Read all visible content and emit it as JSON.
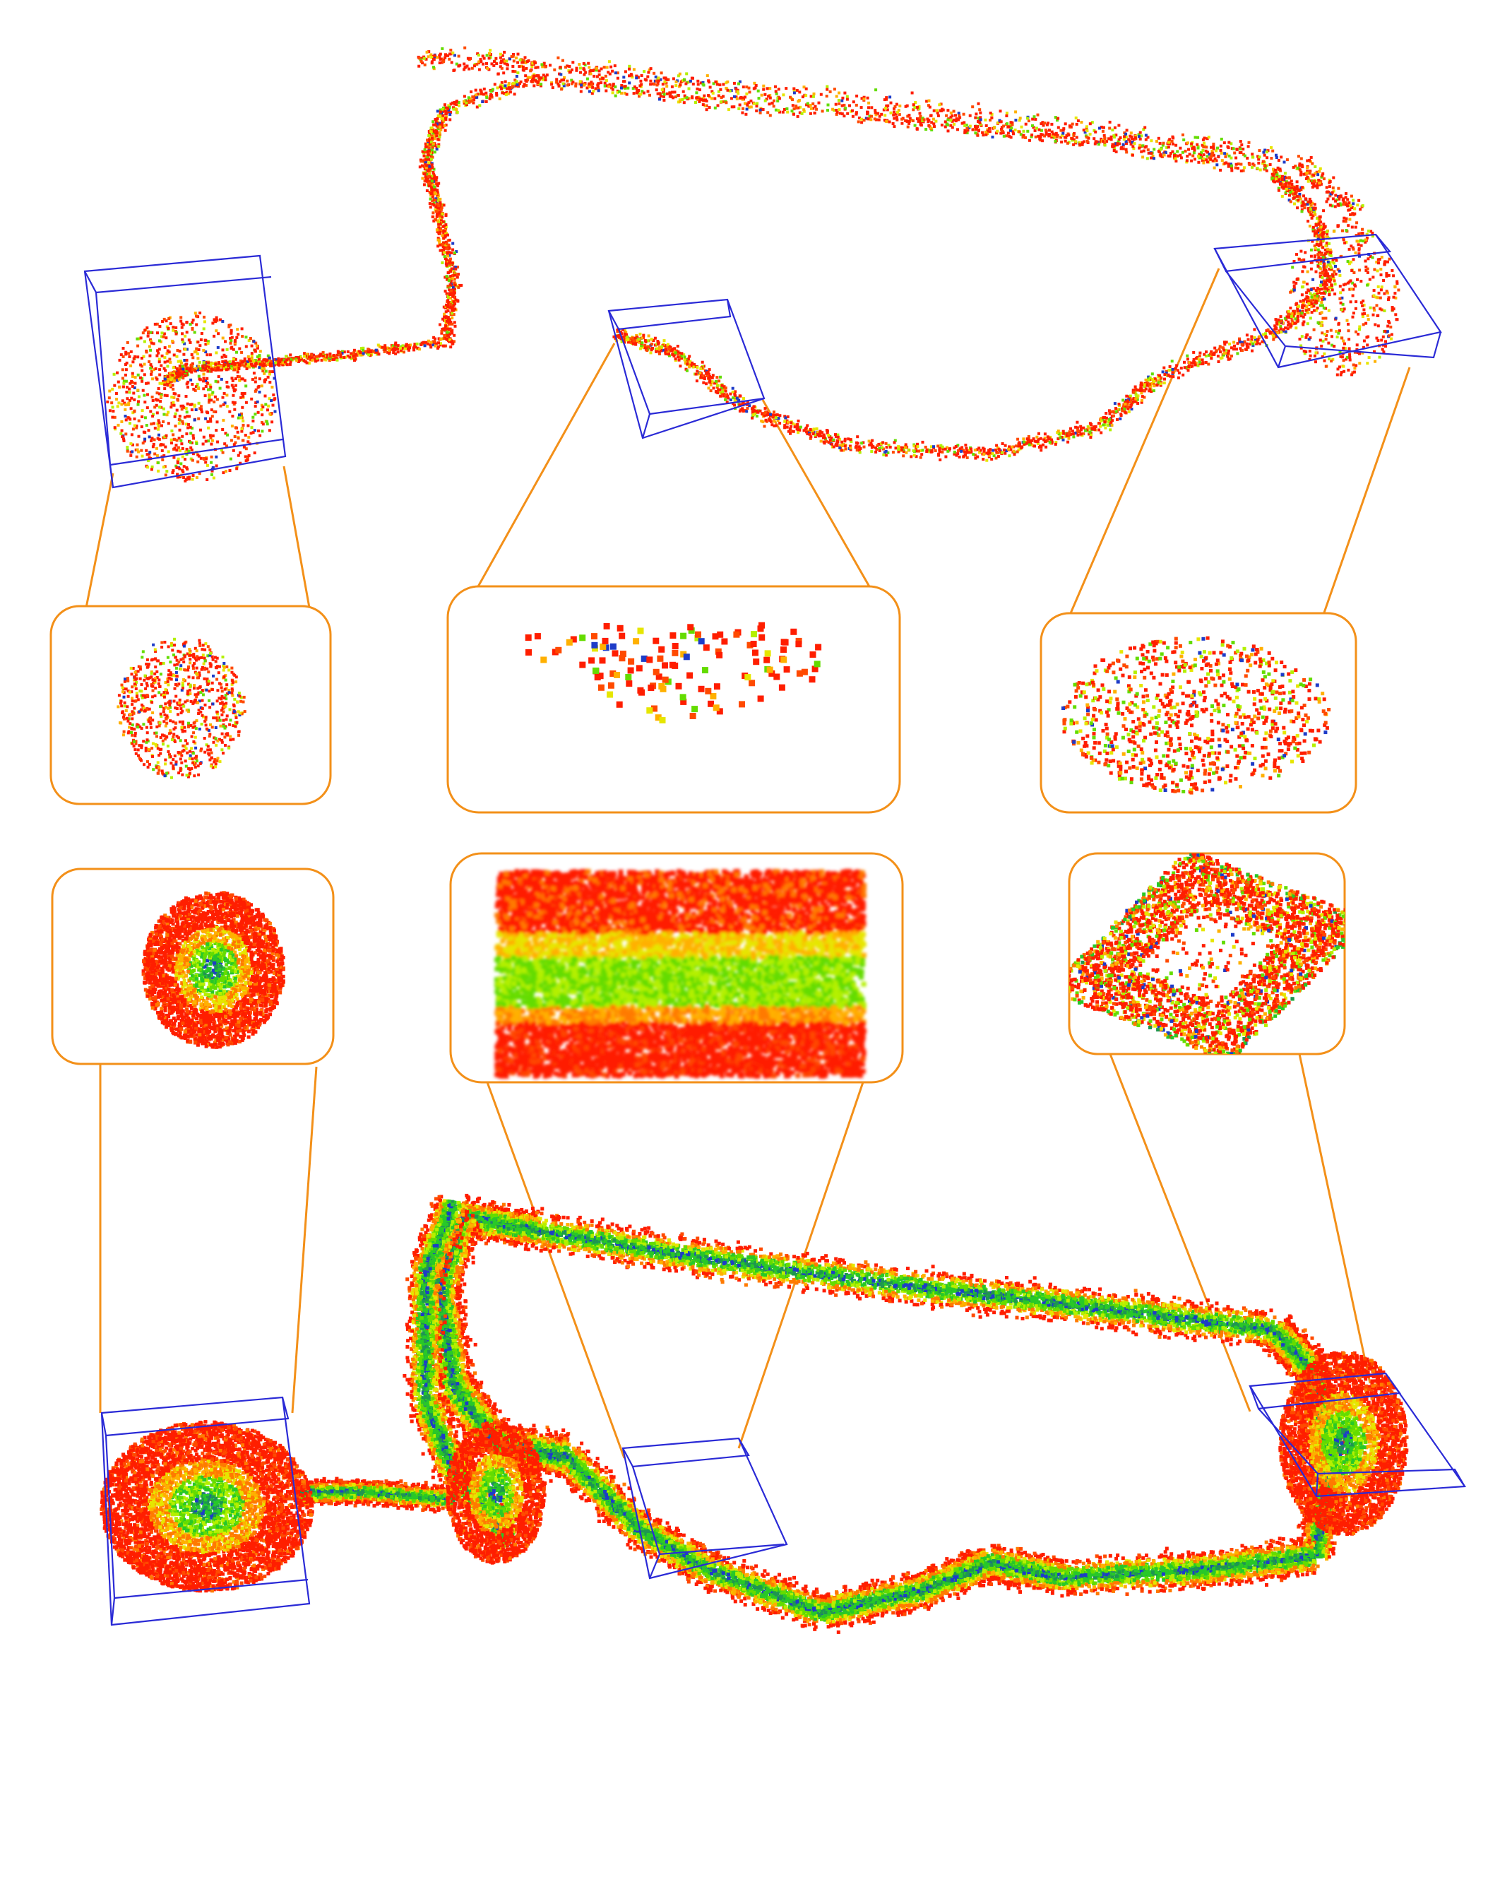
{
  "figure": {
    "background": "#ffffff",
    "connector_color": "#f39019",
    "box_color": "#2a2ad6",
    "inset_border_color": "#f39019",
    "point_palette": [
      "#ff1e00",
      "#ff4a00",
      "#ff7a00",
      "#ffb000",
      "#e6e600",
      "#b4f000",
      "#64dc00",
      "#28c828",
      "#1e9650",
      "#1e3cc8"
    ],
    "panels": [
      {
        "id": "sparse-map",
        "kind": "point-cloud",
        "style": "sparse"
      },
      {
        "id": "dense-map",
        "kind": "point-cloud",
        "style": "dense"
      }
    ],
    "insets": [
      {
        "id": "sparse-left",
        "region": "left"
      },
      {
        "id": "sparse-middle",
        "region": "middle"
      },
      {
        "id": "sparse-right",
        "region": "right"
      },
      {
        "id": "dense-left",
        "region": "left"
      },
      {
        "id": "dense-middle",
        "region": "middle"
      },
      {
        "id": "dense-right",
        "region": "right"
      }
    ]
  }
}
